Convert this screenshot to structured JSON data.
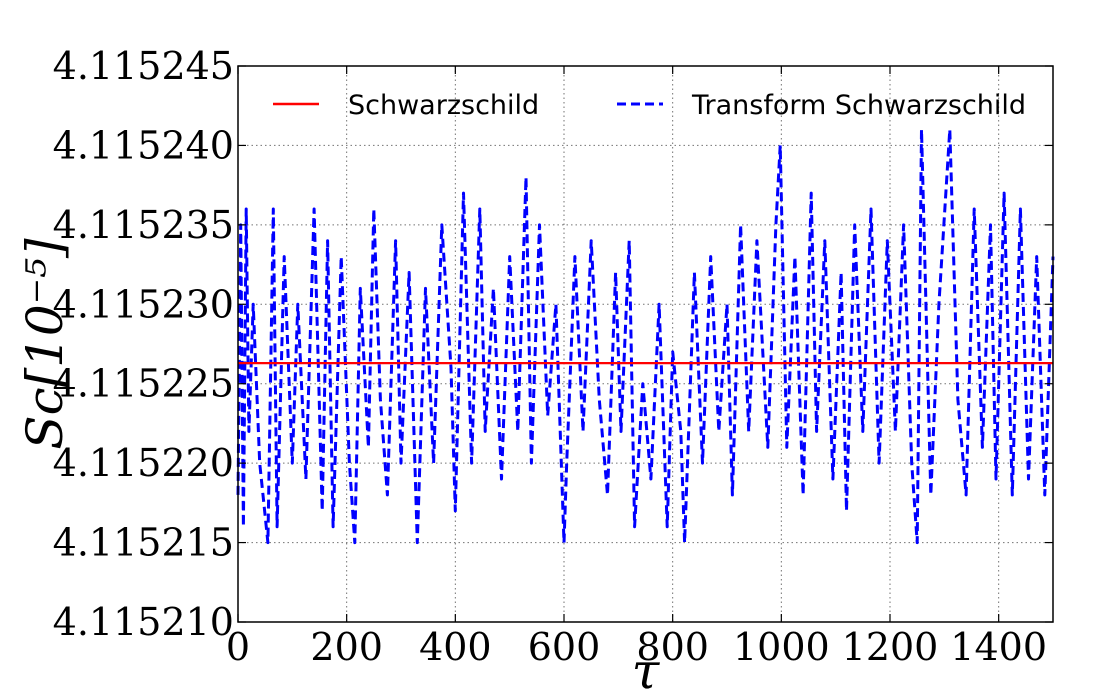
{
  "chart_data": {
    "type": "line",
    "xlabel": "τ",
    "ylabel": "Sc[10⁻⁵]",
    "xlim": [
      0,
      1500
    ],
    "ylim": [
      4.11521,
      4.115245
    ],
    "x_ticks": [
      "0",
      "200",
      "400",
      "600",
      "800",
      "1000",
      "1200",
      "1400"
    ],
    "x_tick_values": [
      0,
      200,
      400,
      600,
      800,
      1000,
      1200,
      1400
    ],
    "y_ticks": [
      "4.115210",
      "4.115215",
      "4.115220",
      "4.115225",
      "4.115230",
      "4.115235",
      "4.115240",
      "4.115245"
    ],
    "y_tick_values": [
      4.11521,
      4.115215,
      4.11522,
      4.115225,
      4.11523,
      4.115235,
      4.11524,
      4.115245
    ],
    "grid": true,
    "legend_position": "top",
    "series": [
      {
        "name": "Schwarzschild",
        "color": "#ff0000",
        "style": "solid",
        "x": [
          0,
          1500
        ],
        "y": [
          4.1152263,
          4.1152263
        ]
      },
      {
        "name": "Transform Schwarzschild",
        "color": "#0000ff",
        "style": "dashed",
        "x": [
          0,
          5,
          10,
          15,
          20,
          28,
          40,
          55,
          65,
          72,
          85,
          100,
          110,
          125,
          140,
          155,
          165,
          175,
          190,
          205,
          215,
          225,
          240,
          250,
          262,
          275,
          290,
          300,
          315,
          330,
          345,
          360,
          375,
          392,
          400,
          415,
          430,
          445,
          455,
          470,
          485,
          500,
          515,
          530,
          540,
          555,
          570,
          585,
          600,
          605,
          620,
          635,
          650,
          665,
          680,
          695,
          705,
          720,
          730,
          745,
          760,
          775,
          790,
          800,
          815,
          822,
          840,
          855,
          870,
          885,
          900,
          910,
          925,
          940,
          955,
          975,
          990,
          998,
          1010,
          1025,
          1040,
          1055,
          1065,
          1080,
          1095,
          1110,
          1120,
          1135,
          1150,
          1165,
          1180,
          1195,
          1210,
          1225,
          1240,
          1250,
          1258,
          1275,
          1290,
          1310,
          1325,
          1340,
          1355,
          1370,
          1385,
          1395,
          1410,
          1425,
          1440,
          1455,
          1470,
          1485,
          1500
        ],
        "y": [
          4.115218,
          4.115235,
          4.115216,
          4.115236,
          4.115222,
          4.11523,
          4.11522,
          4.115215,
          4.115236,
          4.115216,
          4.115233,
          4.11522,
          4.11523,
          4.115219,
          4.115236,
          4.115217,
          4.115234,
          4.115216,
          4.115233,
          4.11522,
          4.115215,
          4.115231,
          4.115221,
          4.115236,
          4.115224,
          4.115218,
          4.115234,
          4.11522,
          4.115232,
          4.115215,
          4.115231,
          4.11522,
          4.115235,
          4.115226,
          4.115217,
          4.115237,
          4.11522,
          4.115236,
          4.115222,
          4.115231,
          4.115219,
          4.115233,
          4.115222,
          4.115238,
          4.11522,
          4.115235,
          4.115223,
          4.11523,
          4.115215,
          4.11522,
          4.115233,
          4.115222,
          4.115234,
          4.115224,
          4.115218,
          4.115232,
          4.115222,
          4.115234,
          4.115216,
          4.115225,
          4.115219,
          4.11523,
          4.115216,
          4.115227,
          4.115222,
          4.115215,
          4.115232,
          4.11522,
          4.115233,
          4.115222,
          4.11523,
          4.115218,
          4.115235,
          4.115222,
          4.115234,
          4.115221,
          4.115235,
          4.11524,
          4.115221,
          4.115233,
          4.115218,
          4.115237,
          4.115222,
          4.115234,
          4.115219,
          4.115232,
          4.115217,
          4.115235,
          4.115222,
          4.115236,
          4.11522,
          4.115234,
          4.115222,
          4.115235,
          4.11522,
          4.115215,
          4.115241,
          4.115218,
          4.11523,
          4.115241,
          4.115224,
          4.115218,
          4.115236,
          4.115221,
          4.115235,
          4.115219,
          4.115237,
          4.115218,
          4.115236,
          4.115219,
          4.115233,
          4.115218,
          4.115233
        ]
      }
    ]
  }
}
